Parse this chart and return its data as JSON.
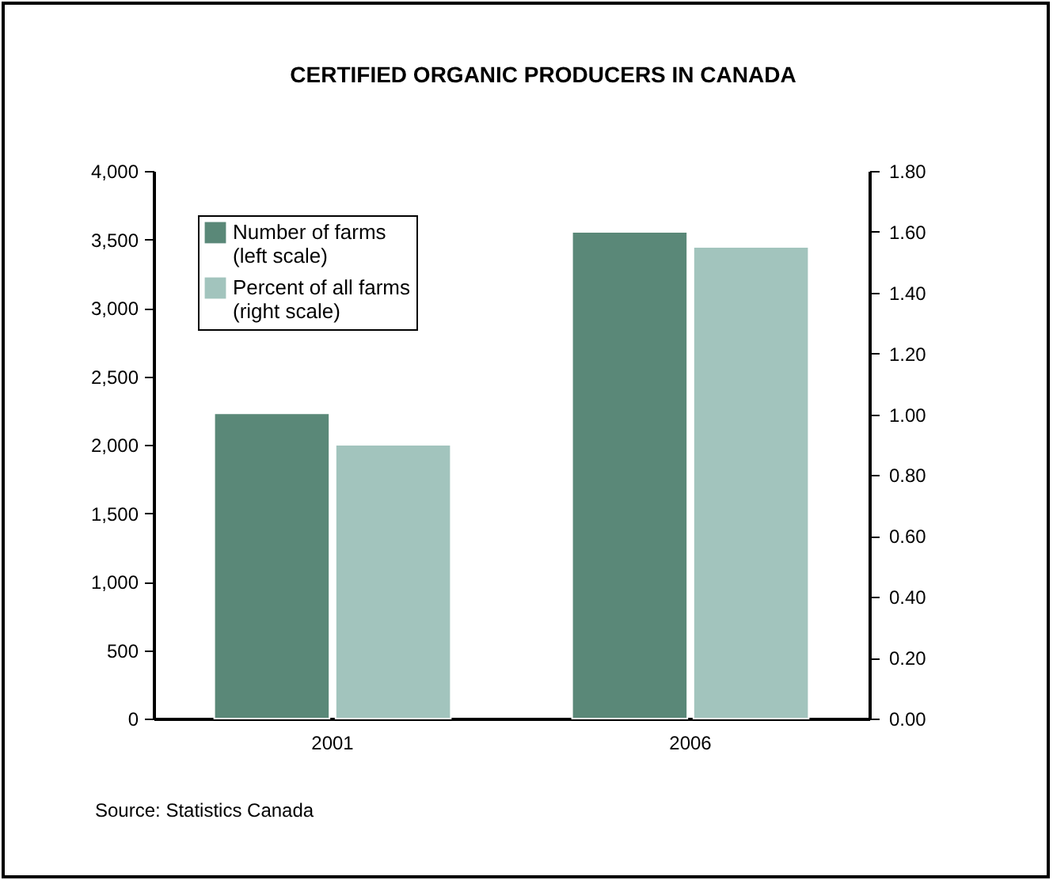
{
  "chart_data": {
    "type": "bar",
    "title": "CERTIFIED ORGANIC PRODUCERS IN CANADA",
    "categories": [
      "2001",
      "2006"
    ],
    "series": [
      {
        "name": "Number of farms\n(left scale)",
        "color": "#5a8878",
        "values": [
          2230,
          3555
        ]
      },
      {
        "name": "Percent of all farms\n(right scale)",
        "color": "#a2c4bd",
        "values": [
          0.9,
          1.55
        ],
        "axis": "y2"
      }
    ],
    "ylim": [
      0,
      4000
    ],
    "yticks": [
      {
        "value": 0,
        "label": "0"
      },
      {
        "value": 500,
        "label": "500"
      },
      {
        "value": 1000,
        "label": "1,000"
      },
      {
        "value": 1500,
        "label": "1,500"
      },
      {
        "value": 2000,
        "label": "2,000"
      },
      {
        "value": 2500,
        "label": "2,500"
      },
      {
        "value": 3000,
        "label": "3,000"
      },
      {
        "value": 3500,
        "label": "3,500"
      },
      {
        "value": 4000,
        "label": "4,000"
      }
    ],
    "y2lim": [
      0,
      1.8
    ],
    "y2ticks": [
      {
        "value": 0,
        "label": "0.00"
      },
      {
        "value": 0.2,
        "label": "0.20"
      },
      {
        "value": 0.4,
        "label": "0.40"
      },
      {
        "value": 0.6,
        "label": "0.60"
      },
      {
        "value": 0.8,
        "label": "0.80"
      },
      {
        "value": 1.0,
        "label": "1.00"
      },
      {
        "value": 1.2,
        "label": "1.20"
      },
      {
        "value": 1.4,
        "label": "1.40"
      },
      {
        "value": 1.6,
        "label": "1.60"
      },
      {
        "value": 1.8,
        "label": "1.80"
      }
    ],
    "legend": "top left",
    "grid": false,
    "annotations": [
      "Source: Statistics Canada"
    ]
  }
}
